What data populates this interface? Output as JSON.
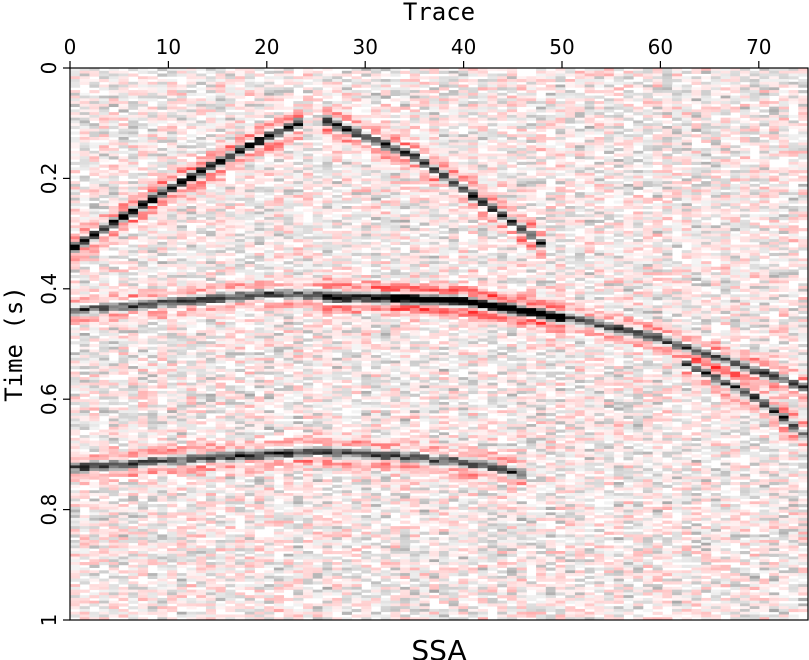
{
  "chart_data": {
    "type": "heatmap",
    "title": "SSA",
    "xlabel": "Trace",
    "ylabel": "Time (s)",
    "x_axis_position": "top",
    "y_axis_inverted": true,
    "xlim": [
      0,
      75
    ],
    "ylim": [
      0,
      1
    ],
    "xticks": [
      0,
      10,
      20,
      30,
      40,
      50,
      60,
      70
    ],
    "yticks": [
      0,
      0.2,
      0.4,
      0.6,
      0.8,
      1
    ],
    "grid": false,
    "colormap": {
      "negative": "#ff0000",
      "zero": "#ffffff",
      "positive": "#000000"
    },
    "noise_level": 0.22,
    "events": [
      {
        "name": "direct-wave-left",
        "points": [
          [
            0,
            0.33
          ],
          [
            10,
            0.22
          ],
          [
            20,
            0.125
          ],
          [
            24,
            0.095
          ]
        ],
        "amplitude": 1.0
      },
      {
        "name": "direct-wave-right",
        "points": [
          [
            26,
            0.095
          ],
          [
            35,
            0.16
          ],
          [
            45,
            0.28
          ],
          [
            48,
            0.32
          ]
        ],
        "amplitude": 0.85
      },
      {
        "name": "dipping-event",
        "points": [
          [
            26,
            0.42
          ],
          [
            40,
            0.42
          ],
          [
            50,
            0.45
          ],
          [
            60,
            0.49
          ],
          [
            75,
            0.58
          ]
        ],
        "amplitude": 0.75
      },
      {
        "name": "lower-dip-event",
        "points": [
          [
            62,
            0.53
          ],
          [
            70,
            0.6
          ],
          [
            75,
            0.67
          ]
        ],
        "amplitude": 0.8
      },
      {
        "name": "reflection-1",
        "points": [
          [
            0,
            0.44
          ],
          [
            10,
            0.425
          ],
          [
            20,
            0.41
          ],
          [
            30,
            0.41
          ],
          [
            40,
            0.425
          ],
          [
            50,
            0.455
          ]
        ],
        "amplitude": 0.7
      },
      {
        "name": "reflection-2",
        "points": [
          [
            0,
            0.725
          ],
          [
            15,
            0.705
          ],
          [
            25,
            0.695
          ],
          [
            35,
            0.705
          ],
          [
            42,
            0.72
          ],
          [
            46,
            0.735
          ]
        ],
        "amplitude": 0.75
      }
    ]
  }
}
